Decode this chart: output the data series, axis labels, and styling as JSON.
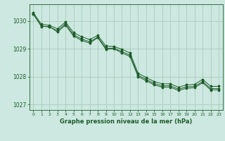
{
  "title": "Graphe pression niveau de la mer (hPa)",
  "bg_color": "#cce8e0",
  "grid_color": "#aaccbb",
  "line_color": "#1e5c2a",
  "marker_color": "#1e5c2a",
  "xlim": [
    -0.5,
    23.5
  ],
  "ylim": [
    1026.8,
    1030.6
  ],
  "yticks": [
    1027,
    1028,
    1029,
    1030
  ],
  "xticks": [
    0,
    1,
    2,
    3,
    4,
    5,
    6,
    7,
    8,
    9,
    10,
    11,
    12,
    13,
    14,
    15,
    16,
    17,
    18,
    19,
    20,
    21,
    22,
    23
  ],
  "series1": [
    1030.25,
    1029.8,
    1029.8,
    1029.6,
    1029.85,
    1029.45,
    1029.3,
    1029.2,
    1029.4,
    1028.98,
    1029.0,
    1028.85,
    1028.72,
    1028.0,
    1027.85,
    1027.7,
    1027.62,
    1027.62,
    1027.5,
    1027.58,
    1027.6,
    1027.78,
    1027.52,
    1027.52
  ],
  "series2": [
    1030.25,
    1029.82,
    1029.78,
    1029.65,
    1029.9,
    1029.5,
    1029.35,
    1029.25,
    1029.42,
    1029.02,
    1029.02,
    1028.9,
    1028.77,
    1028.05,
    1027.9,
    1027.75,
    1027.67,
    1027.67,
    1027.55,
    1027.63,
    1027.65,
    1027.82,
    1027.57,
    1027.57
  ],
  "series3": [
    1030.3,
    1029.88,
    1029.84,
    1029.72,
    1029.96,
    1029.58,
    1029.43,
    1029.33,
    1029.48,
    1029.1,
    1029.08,
    1028.98,
    1028.85,
    1028.12,
    1027.97,
    1027.82,
    1027.74,
    1027.74,
    1027.62,
    1027.7,
    1027.72,
    1027.9,
    1027.65,
    1027.65
  ]
}
